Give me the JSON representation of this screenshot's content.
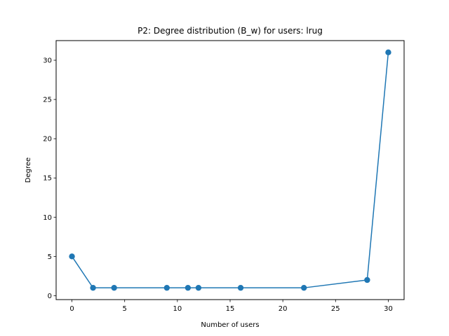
{
  "chart_data": {
    "type": "line",
    "title": "P2: Degree distribution (B_w) for users: lrug",
    "xlabel": "Number of users",
    "ylabel": "Degree",
    "xlim": [
      -1.5,
      31.5
    ],
    "ylim": [
      -0.5,
      32.5
    ],
    "xticks": [
      0,
      5,
      10,
      15,
      20,
      25,
      30
    ],
    "yticks": [
      0,
      5,
      10,
      15,
      20,
      25,
      30
    ],
    "grid": false,
    "series": [
      {
        "color": "#1f77b4",
        "marker": "circle",
        "points": [
          {
            "x": 0,
            "y": 5
          },
          {
            "x": 2,
            "y": 1
          },
          {
            "x": 4,
            "y": 1
          },
          {
            "x": 9,
            "y": 1
          },
          {
            "x": 11,
            "y": 1
          },
          {
            "x": 12,
            "y": 1
          },
          {
            "x": 16,
            "y": 1
          },
          {
            "x": 22,
            "y": 1
          },
          {
            "x": 28,
            "y": 2
          },
          {
            "x": 30,
            "y": 31
          }
        ]
      }
    ]
  }
}
